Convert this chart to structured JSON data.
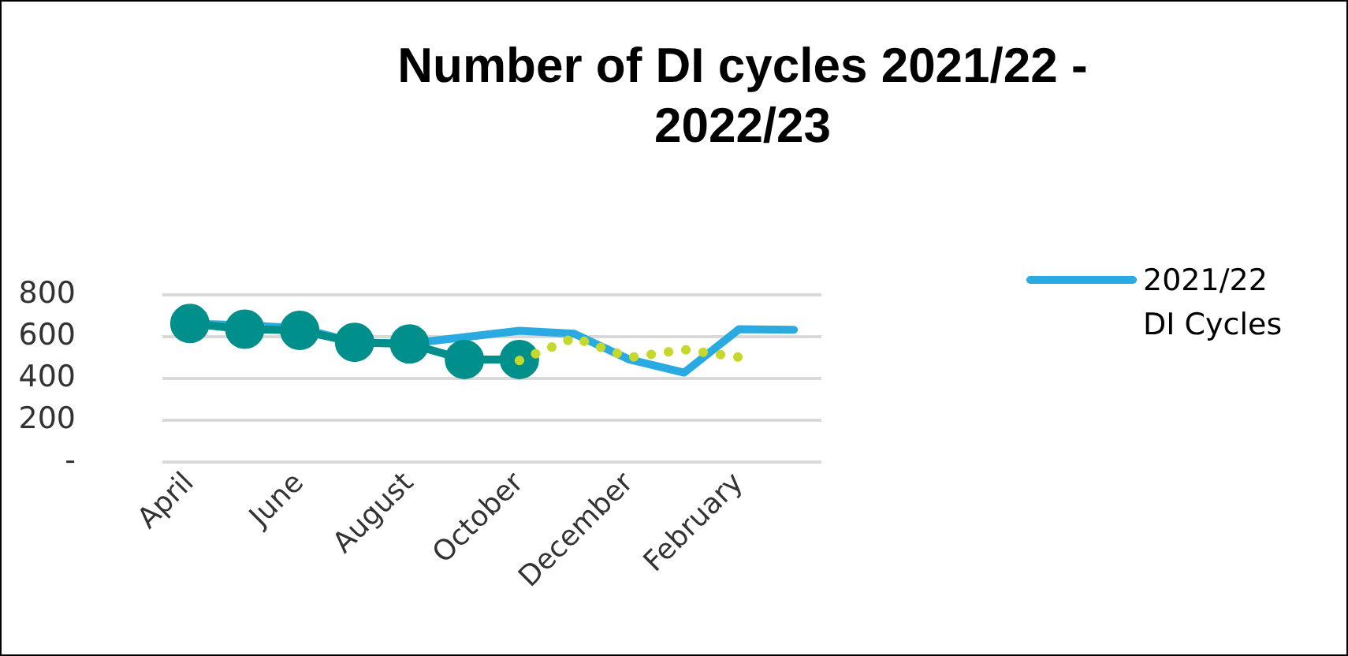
{
  "chart_data": {
    "type": "line",
    "title": "Number of DI cycles 2021/22 - 2022/23",
    "categories": [
      "April",
      null,
      "June",
      null,
      "August",
      null,
      "October",
      null,
      "December",
      null,
      "February",
      null
    ],
    "series": [
      {
        "name": "2021/22 DI Cycles",
        "color": "#29abe2",
        "values": [
          663,
          655,
          641,
          573,
          567,
          null,
          628,
          614,
          491,
          428,
          636,
          633
        ],
        "marker": "none",
        "line_style": "solid"
      },
      {
        "color": "#008f8a",
        "values": [
          663,
          636,
          630,
          573,
          565,
          491,
          491,
          null,
          null,
          null,
          null,
          null
        ],
        "marker": "circle",
        "line_style": "solid"
      },
      {
        "color": "#c5d92d",
        "values": [
          null,
          null,
          null,
          null,
          null,
          null,
          486,
          595,
          500,
          538,
          502,
          null
        ],
        "marker": "none",
        "line_style": "dotted"
      }
    ],
    "ylim": [
      0,
      800
    ],
    "yticks": [
      {
        "value": 0,
        "label": "-"
      },
      200,
      400,
      600,
      800
    ],
    "grid": "y",
    "legend": "right"
  }
}
